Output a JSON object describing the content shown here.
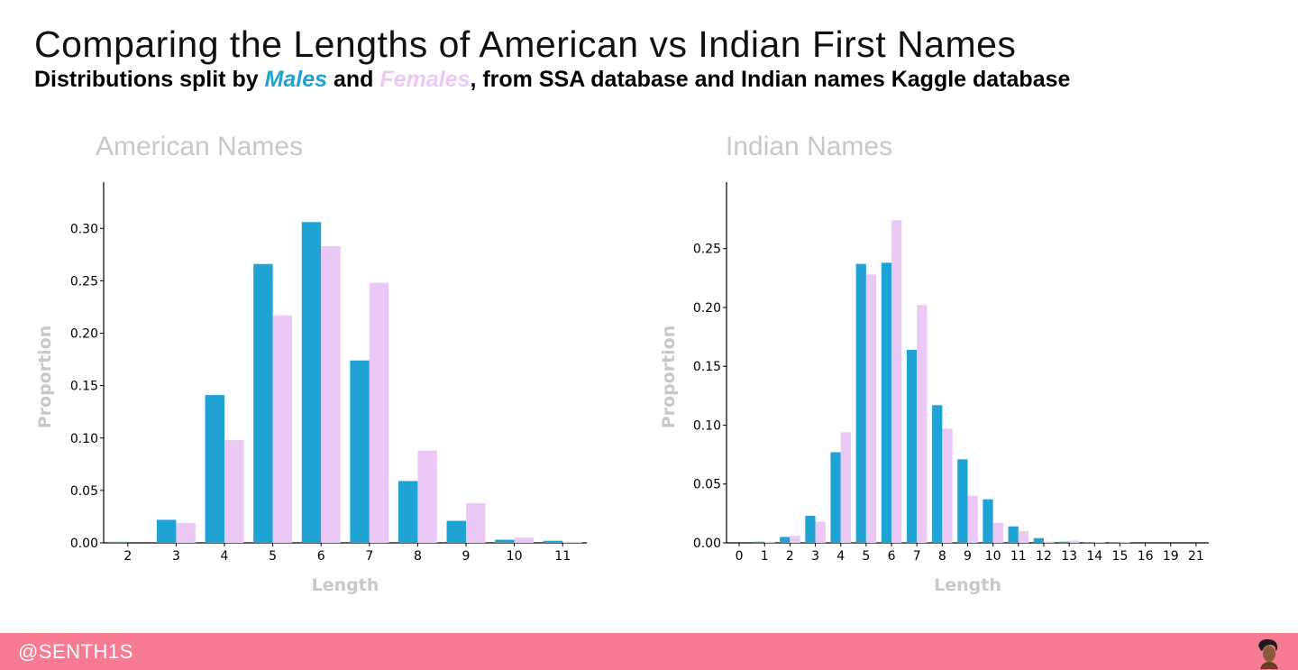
{
  "title": "Comparing the Lengths of American vs Indian First Names",
  "subtitle": {
    "prefix": "Distributions split by ",
    "males": "Males",
    "mid": " and ",
    "females": "Females",
    "suffix": ", from SSA database and Indian names Kaggle database"
  },
  "colors": {
    "males": "#1fa2d4",
    "females": "#ecc8f6",
    "footer": "#f87b94",
    "muted": "#c8c8c8"
  },
  "footer": {
    "handle": "@SENTH1S"
  },
  "chart_data": [
    {
      "type": "bar",
      "title": "American Names",
      "xlabel": "Length",
      "ylabel": "Proportion",
      "ylim": [
        0,
        0.32
      ],
      "yticks": [
        0.0,
        0.05,
        0.1,
        0.15,
        0.2,
        0.25,
        0.3
      ],
      "categories": [
        "2",
        "3",
        "4",
        "5",
        "6",
        "7",
        "8",
        "9",
        "10",
        "11"
      ],
      "series": [
        {
          "name": "Males",
          "values": [
            0.001,
            0.022,
            0.141,
            0.266,
            0.306,
            0.174,
            0.059,
            0.021,
            0.003,
            0.002
          ]
        },
        {
          "name": "Females",
          "values": [
            0.0,
            0.019,
            0.098,
            0.217,
            0.283,
            0.248,
            0.088,
            0.038,
            0.005,
            0.001
          ]
        }
      ],
      "grid": false,
      "legend": "none"
    },
    {
      "type": "bar",
      "title": "Indian Names",
      "xlabel": "Length",
      "ylabel": "Proportion",
      "ylim": [
        0,
        0.285
      ],
      "yticks": [
        0.0,
        0.05,
        0.1,
        0.15,
        0.2,
        0.25
      ],
      "categories": [
        "0",
        "1",
        "2",
        "3",
        "4",
        "5",
        "6",
        "7",
        "8",
        "9",
        "10",
        "11",
        "12",
        "13",
        "14",
        "15",
        "16",
        "19",
        "21"
      ],
      "series": [
        {
          "name": "Males",
          "values": [
            0.0,
            0.001,
            0.005,
            0.023,
            0.077,
            0.237,
            0.238,
            0.164,
            0.117,
            0.071,
            0.037,
            0.014,
            0.004,
            0.001,
            0.0005,
            0.0005,
            0.0,
            0.0,
            0.0
          ]
        },
        {
          "name": "Females",
          "values": [
            0.0,
            0.001,
            0.006,
            0.018,
            0.094,
            0.228,
            0.274,
            0.202,
            0.097,
            0.04,
            0.017,
            0.01,
            0.001,
            0.002,
            0.0005,
            0.0005,
            0.0,
            0.0,
            0.0
          ]
        }
      ],
      "grid": false,
      "legend": "none"
    }
  ]
}
